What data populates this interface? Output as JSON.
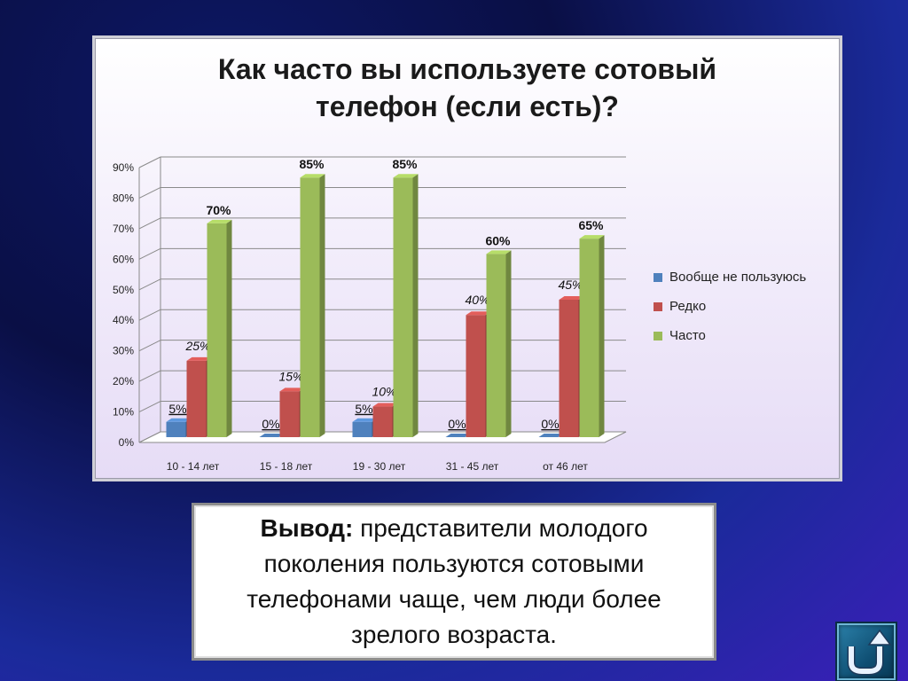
{
  "chart_data": {
    "type": "bar",
    "title": [
      "Как часто вы используете сотовый",
      "телефон (если есть)?"
    ],
    "categories": [
      "10 - 14 лет",
      "15 - 18 лет",
      "19 - 30 лет",
      "31 - 45 лет",
      "от 46 лет"
    ],
    "series": [
      {
        "name": "Вообще не пользуюсь",
        "values": [
          5,
          0,
          5,
          0,
          0
        ],
        "color": "#4f81bd",
        "labels": [
          "5%",
          "0%",
          "5%",
          "0%",
          "0%"
        ],
        "label_style": "underline"
      },
      {
        "name": "Редко",
        "values": [
          25,
          15,
          10,
          40,
          45
        ],
        "color": "#c0504d",
        "labels": [
          "25%",
          "15%",
          "10%",
          "40%",
          "45%"
        ],
        "label_style": "italic"
      },
      {
        "name": "Часто",
        "values": [
          70,
          85,
          85,
          60,
          65
        ],
        "color": "#9bbb59",
        "labels": [
          "70%",
          "85%",
          "85%",
          "60%",
          "65%"
        ],
        "label_style": "bold"
      }
    ],
    "yticks": [
      "0%",
      "10%",
      "20%",
      "30%",
      "40%",
      "50%",
      "60%",
      "70%",
      "80%",
      "90%"
    ],
    "ylim": [
      0,
      90
    ],
    "grid": true,
    "legend_position": "right",
    "style": "3d-clustered-column"
  },
  "conclusion": {
    "lead": "Вывод:",
    "text": " представители молодого поколения пользуются сотовыми телефонами чаще, чем люди более зрелого возраста."
  },
  "nav": {
    "icon": "return-arrow-icon"
  }
}
